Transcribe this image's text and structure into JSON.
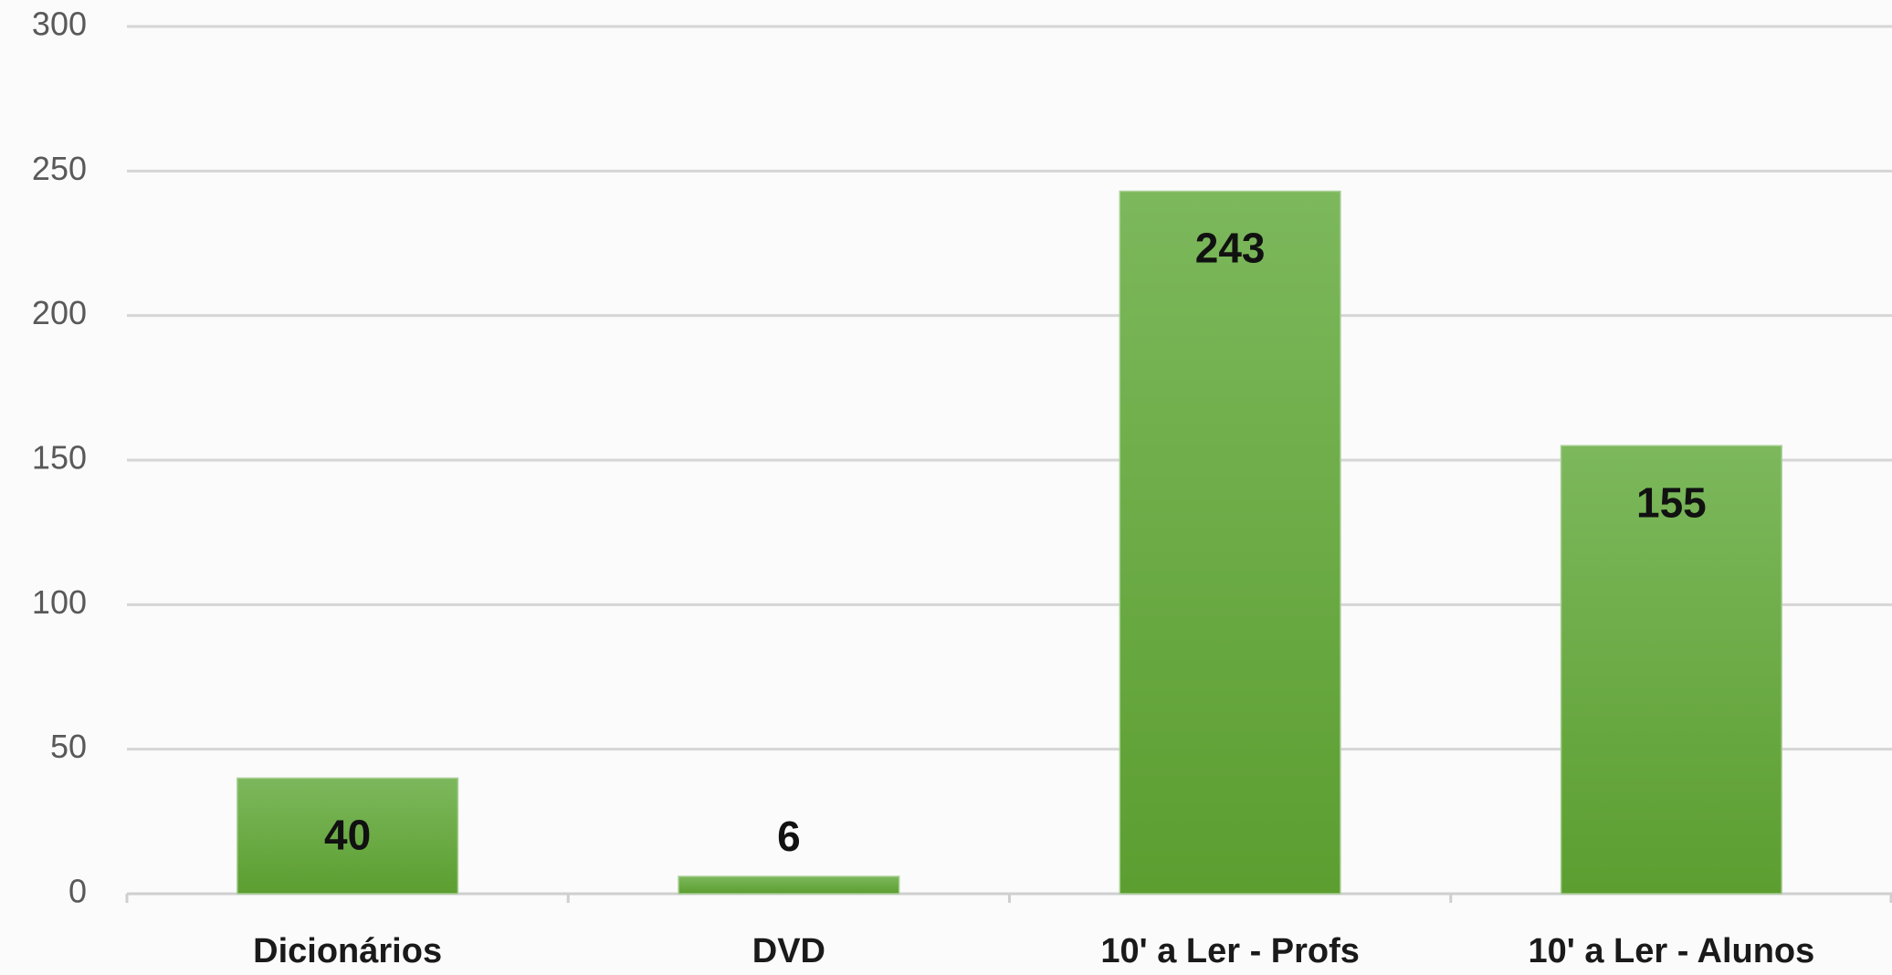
{
  "chart_data": {
    "type": "bar",
    "categories": [
      "Dicionários",
      "DVD",
      "10' a Ler - Profs",
      "10' a Ler - Alunos"
    ],
    "values": [
      40,
      6,
      243,
      155
    ],
    "color": "#6aab40",
    "ylim": [
      0,
      300
    ],
    "yticks": [
      0,
      50,
      100,
      150,
      200,
      250,
      300
    ],
    "grid": true
  }
}
